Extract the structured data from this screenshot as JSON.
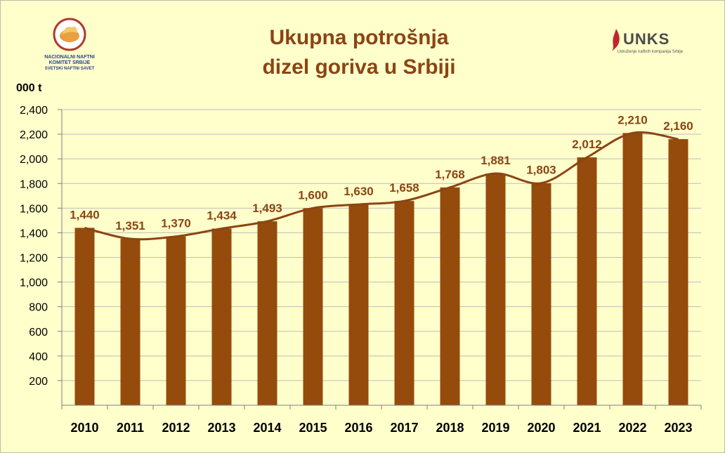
{
  "title_lines": [
    "Ukupna potrošnja",
    "dizel goriva u Srbiji"
  ],
  "left_logo": {
    "lines": [
      "NACIONALNI NAFTNI",
      "KOMITET SRBIJE",
      "SVETSKI NAFTNI SAVET"
    ]
  },
  "right_logo": {
    "name": "UNKS",
    "subtitle": "Udruženje naftnih kompanija Srbije"
  },
  "chart_data": {
    "type": "bar",
    "title": "Ukupna potrošnja dizel goriva u Srbiji",
    "ylabel": "000 t",
    "xlabel": "",
    "categories": [
      "2010",
      "2011",
      "2012",
      "2013",
      "2014",
      "2015",
      "2016",
      "2017",
      "2018",
      "2019",
      "2020",
      "2021",
      "2022",
      "2023"
    ],
    "values": [
      1440,
      1351,
      1370,
      1434,
      1493,
      1600,
      1630,
      1658,
      1768,
      1881,
      1803,
      2012,
      2210,
      2160
    ],
    "data_labels": [
      "1,440",
      "1,351",
      "1,370",
      "1,434",
      "1,493",
      "1,600",
      "1,630",
      "1,658",
      "1,768",
      "1,881",
      "1,803",
      "2,012",
      "2,210",
      "2,160"
    ],
    "ylim": [
      0,
      2400
    ],
    "yticks": [
      200,
      400,
      600,
      800,
      1000,
      1200,
      1400,
      1600,
      1800,
      2000,
      2200,
      2400
    ],
    "ytick_labels": [
      "200",
      "400",
      "600",
      "800",
      "1,000",
      "1,200",
      "1,400",
      "1,600",
      "1,800",
      "2,000",
      "2,200",
      "2,400"
    ],
    "trend_line": true,
    "grid": true,
    "colors": {
      "bar": "#954B0C",
      "line": "#8B4513",
      "label": "#8B4513",
      "grid": "#BDBDBD",
      "background": "#FFFFCC"
    }
  }
}
